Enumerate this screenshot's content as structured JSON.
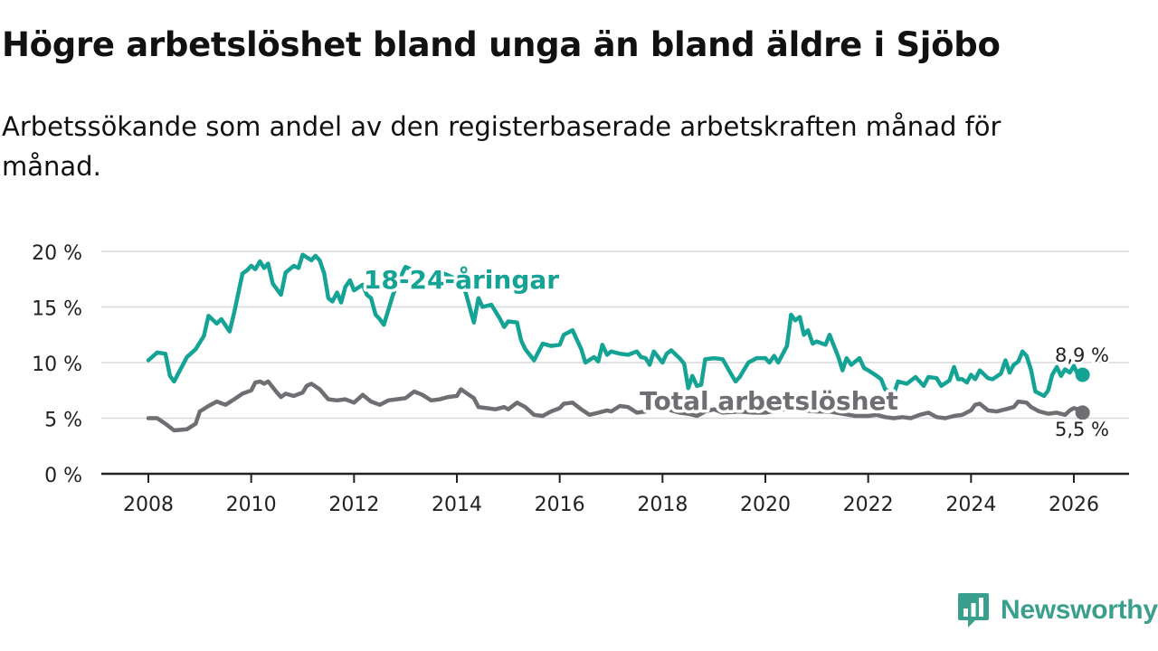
{
  "header": {
    "title": "Högre arbetslöshet bland unga än bland äldre i Sjöbo",
    "subtitle": "Arbetssökande som andel av den registerbaserade arbetskraften månad för månad."
  },
  "brand": {
    "name": "Newsworthy",
    "color": "#3aa08d"
  },
  "chart_data": {
    "type": "line",
    "title": "Högre arbetslöshet bland unga än bland äldre i Sjöbo",
    "xlabel": "",
    "ylabel": "",
    "xlim": [
      2007.5,
      2027.0
    ],
    "ylim": [
      0,
      20
    ],
    "yticks": [
      0,
      5,
      10,
      15,
      20
    ],
    "ytick_labels": [
      "0 %",
      "5 %",
      "10 %",
      "15 %",
      "20 %"
    ],
    "xticks": [
      2008,
      2010,
      2012,
      2014,
      2016,
      2018,
      2020,
      2022,
      2024,
      2026
    ],
    "xtick_labels": [
      "2008",
      "2010",
      "2012",
      "2014",
      "2016",
      "2018",
      "2020",
      "2022",
      "2024",
      "2026"
    ],
    "grid": true,
    "series": [
      {
        "name": "18-24-åringar",
        "color": "#14a394",
        "end_label": "8,9 %",
        "points": [
          [
            2008.0,
            10.2
          ],
          [
            2008.17,
            10.9
          ],
          [
            2008.33,
            10.8
          ],
          [
            2008.42,
            8.8
          ],
          [
            2008.5,
            8.3
          ],
          [
            2008.75,
            10.5
          ],
          [
            2008.92,
            11.2
          ],
          [
            2009.08,
            12.4
          ],
          [
            2009.17,
            14.2
          ],
          [
            2009.33,
            13.5
          ],
          [
            2009.42,
            13.9
          ],
          [
            2009.58,
            12.8
          ],
          [
            2009.67,
            14.5
          ],
          [
            2009.83,
            18.0
          ],
          [
            2009.92,
            18.3
          ],
          [
            2010.0,
            18.7
          ],
          [
            2010.08,
            18.4
          ],
          [
            2010.17,
            19.1
          ],
          [
            2010.25,
            18.5
          ],
          [
            2010.33,
            18.9
          ],
          [
            2010.42,
            17.1
          ],
          [
            2010.58,
            16.1
          ],
          [
            2010.67,
            18.1
          ],
          [
            2010.83,
            18.7
          ],
          [
            2010.92,
            18.5
          ],
          [
            2011.0,
            19.7
          ],
          [
            2011.17,
            19.2
          ],
          [
            2011.25,
            19.6
          ],
          [
            2011.33,
            19.2
          ],
          [
            2011.42,
            18.0
          ],
          [
            2011.5,
            15.8
          ],
          [
            2011.58,
            15.5
          ],
          [
            2011.67,
            16.3
          ],
          [
            2011.75,
            15.4
          ],
          [
            2011.83,
            16.8
          ],
          [
            2011.92,
            17.4
          ],
          [
            2012.0,
            16.5
          ],
          [
            2012.17,
            17.0
          ],
          [
            2012.25,
            16.1
          ],
          [
            2012.33,
            15.8
          ],
          [
            2012.42,
            14.3
          ],
          [
            2012.5,
            13.9
          ],
          [
            2012.58,
            13.4
          ],
          [
            2012.75,
            16.0
          ],
          [
            2012.83,
            17.0
          ],
          [
            2013.0,
            18.6
          ],
          [
            2013.25,
            18.1
          ],
          [
            2013.5,
            17.2
          ],
          [
            2013.75,
            18.0
          ],
          [
            2014.0,
            17.5
          ],
          [
            2014.17,
            16.3
          ],
          [
            2014.33,
            13.6
          ],
          [
            2014.42,
            15.8
          ],
          [
            2014.5,
            15.0
          ],
          [
            2014.67,
            15.2
          ],
          [
            2014.83,
            14.0
          ],
          [
            2014.92,
            13.2
          ],
          [
            2015.0,
            13.7
          ],
          [
            2015.17,
            13.6
          ],
          [
            2015.25,
            12.0
          ],
          [
            2015.33,
            11.2
          ],
          [
            2015.5,
            10.2
          ],
          [
            2015.67,
            11.7
          ],
          [
            2015.83,
            11.5
          ],
          [
            2016.0,
            11.6
          ],
          [
            2016.08,
            12.5
          ],
          [
            2016.25,
            12.9
          ],
          [
            2016.42,
            11.2
          ],
          [
            2016.5,
            10.0
          ],
          [
            2016.67,
            10.5
          ],
          [
            2016.75,
            10.1
          ],
          [
            2016.83,
            11.6
          ],
          [
            2016.92,
            10.7
          ],
          [
            2017.0,
            11.0
          ],
          [
            2017.17,
            10.8
          ],
          [
            2017.33,
            10.7
          ],
          [
            2017.5,
            11.0
          ],
          [
            2017.58,
            10.5
          ],
          [
            2017.67,
            10.4
          ],
          [
            2017.75,
            9.8
          ],
          [
            2017.83,
            11.0
          ],
          [
            2018.0,
            10.0
          ],
          [
            2018.08,
            10.8
          ],
          [
            2018.17,
            11.1
          ],
          [
            2018.33,
            10.4
          ],
          [
            2018.42,
            9.9
          ],
          [
            2018.5,
            7.7
          ],
          [
            2018.58,
            8.8
          ],
          [
            2018.67,
            7.9
          ],
          [
            2018.75,
            8.0
          ],
          [
            2018.83,
            10.3
          ],
          [
            2019.0,
            10.4
          ],
          [
            2019.17,
            10.3
          ],
          [
            2019.33,
            9.0
          ],
          [
            2019.42,
            8.3
          ],
          [
            2019.5,
            8.7
          ],
          [
            2019.67,
            10.0
          ],
          [
            2019.83,
            10.4
          ],
          [
            2020.0,
            10.4
          ],
          [
            2020.08,
            10.0
          ],
          [
            2020.17,
            10.6
          ],
          [
            2020.25,
            10.0
          ],
          [
            2020.42,
            11.5
          ],
          [
            2020.5,
            14.3
          ],
          [
            2020.58,
            13.8
          ],
          [
            2020.67,
            14.1
          ],
          [
            2020.75,
            12.5
          ],
          [
            2020.83,
            12.9
          ],
          [
            2020.92,
            11.7
          ],
          [
            2021.0,
            11.9
          ],
          [
            2021.17,
            11.6
          ],
          [
            2021.25,
            12.5
          ],
          [
            2021.42,
            10.5
          ],
          [
            2021.5,
            9.3
          ],
          [
            2021.58,
            10.4
          ],
          [
            2021.67,
            9.8
          ],
          [
            2021.83,
            10.4
          ],
          [
            2021.92,
            9.5
          ],
          [
            2022.0,
            9.3
          ],
          [
            2022.17,
            8.8
          ],
          [
            2022.25,
            8.5
          ],
          [
            2022.33,
            7.6
          ],
          [
            2022.5,
            7.2
          ],
          [
            2022.58,
            8.3
          ],
          [
            2022.75,
            8.1
          ],
          [
            2022.92,
            8.7
          ],
          [
            2023.08,
            7.9
          ],
          [
            2023.17,
            8.7
          ],
          [
            2023.33,
            8.6
          ],
          [
            2023.42,
            7.9
          ],
          [
            2023.58,
            8.4
          ],
          [
            2023.67,
            9.6
          ],
          [
            2023.75,
            8.5
          ],
          [
            2023.83,
            8.5
          ],
          [
            2023.92,
            8.2
          ],
          [
            2024.0,
            8.9
          ],
          [
            2024.08,
            8.5
          ],
          [
            2024.17,
            9.3
          ],
          [
            2024.33,
            8.6
          ],
          [
            2024.42,
            8.5
          ],
          [
            2024.58,
            9.0
          ],
          [
            2024.67,
            10.2
          ],
          [
            2024.75,
            9.1
          ],
          [
            2024.83,
            9.8
          ],
          [
            2024.92,
            10.1
          ],
          [
            2025.0,
            11.0
          ],
          [
            2025.08,
            10.6
          ],
          [
            2025.17,
            9.3
          ],
          [
            2025.25,
            7.4
          ],
          [
            2025.42,
            7.0
          ],
          [
            2025.5,
            7.5
          ],
          [
            2025.58,
            8.9
          ],
          [
            2025.67,
            9.6
          ],
          [
            2025.75,
            8.8
          ],
          [
            2025.83,
            9.4
          ],
          [
            2025.92,
            9.1
          ],
          [
            2026.0,
            9.7
          ],
          [
            2026.08,
            8.9
          ],
          [
            2026.17,
            8.9
          ]
        ]
      },
      {
        "name": "Total arbetslöshet",
        "color": "#6e6e73",
        "end_label": "5,5 %",
        "points": [
          [
            2008.0,
            5.0
          ],
          [
            2008.17,
            5.0
          ],
          [
            2008.33,
            4.5
          ],
          [
            2008.5,
            3.9
          ],
          [
            2008.75,
            4.0
          ],
          [
            2008.92,
            4.5
          ],
          [
            2009.0,
            5.6
          ],
          [
            2009.17,
            6.1
          ],
          [
            2009.33,
            6.5
          ],
          [
            2009.5,
            6.2
          ],
          [
            2009.67,
            6.7
          ],
          [
            2009.83,
            7.2
          ],
          [
            2010.0,
            7.5
          ],
          [
            2010.08,
            8.2
          ],
          [
            2010.17,
            8.3
          ],
          [
            2010.25,
            8.1
          ],
          [
            2010.33,
            8.3
          ],
          [
            2010.5,
            7.3
          ],
          [
            2010.58,
            6.9
          ],
          [
            2010.67,
            7.2
          ],
          [
            2010.83,
            7.0
          ],
          [
            2011.0,
            7.3
          ],
          [
            2011.08,
            7.9
          ],
          [
            2011.17,
            8.1
          ],
          [
            2011.33,
            7.6
          ],
          [
            2011.5,
            6.7
          ],
          [
            2011.67,
            6.6
          ],
          [
            2011.83,
            6.7
          ],
          [
            2012.0,
            6.4
          ],
          [
            2012.17,
            7.1
          ],
          [
            2012.33,
            6.5
          ],
          [
            2012.5,
            6.2
          ],
          [
            2012.67,
            6.6
          ],
          [
            2012.83,
            6.7
          ],
          [
            2013.0,
            6.8
          ],
          [
            2013.17,
            7.4
          ],
          [
            2013.33,
            7.1
          ],
          [
            2013.5,
            6.6
          ],
          [
            2013.67,
            6.7
          ],
          [
            2013.83,
            6.9
          ],
          [
            2014.0,
            7.0
          ],
          [
            2014.08,
            7.6
          ],
          [
            2014.17,
            7.3
          ],
          [
            2014.33,
            6.8
          ],
          [
            2014.42,
            6.0
          ],
          [
            2014.58,
            5.9
          ],
          [
            2014.75,
            5.8
          ],
          [
            2014.92,
            6.0
          ],
          [
            2015.0,
            5.8
          ],
          [
            2015.17,
            6.4
          ],
          [
            2015.33,
            6.0
          ],
          [
            2015.5,
            5.3
          ],
          [
            2015.67,
            5.2
          ],
          [
            2015.83,
            5.6
          ],
          [
            2016.0,
            5.9
          ],
          [
            2016.08,
            6.3
          ],
          [
            2016.25,
            6.4
          ],
          [
            2016.42,
            5.8
          ],
          [
            2016.58,
            5.3
          ],
          [
            2016.75,
            5.5
          ],
          [
            2016.92,
            5.7
          ],
          [
            2017.0,
            5.6
          ],
          [
            2017.17,
            6.1
          ],
          [
            2017.33,
            6.0
          ],
          [
            2017.5,
            5.5
          ],
          [
            2017.67,
            5.6
          ],
          [
            2017.83,
            6.0
          ],
          [
            2018.0,
            6.0
          ],
          [
            2018.17,
            5.7
          ],
          [
            2018.33,
            5.5
          ],
          [
            2018.5,
            5.4
          ],
          [
            2018.67,
            5.2
          ],
          [
            2018.83,
            5.6
          ],
          [
            2019.0,
            5.8
          ],
          [
            2019.17,
            5.5
          ],
          [
            2019.5,
            5.6
          ],
          [
            2019.75,
            5.5
          ],
          [
            2020.0,
            5.5
          ],
          [
            2020.25,
            5.7
          ],
          [
            2020.5,
            5.9
          ],
          [
            2020.75,
            5.7
          ],
          [
            2021.0,
            5.6
          ],
          [
            2021.25,
            5.6
          ],
          [
            2021.5,
            5.4
          ],
          [
            2021.75,
            5.2
          ],
          [
            2022.0,
            5.2
          ],
          [
            2022.17,
            5.3
          ],
          [
            2022.33,
            5.1
          ],
          [
            2022.5,
            5.0
          ],
          [
            2022.67,
            5.1
          ],
          [
            2022.83,
            5.0
          ],
          [
            2023.0,
            5.3
          ],
          [
            2023.17,
            5.5
          ],
          [
            2023.33,
            5.1
          ],
          [
            2023.5,
            5.0
          ],
          [
            2023.67,
            5.2
          ],
          [
            2023.83,
            5.3
          ],
          [
            2024.0,
            5.7
          ],
          [
            2024.08,
            6.2
          ],
          [
            2024.17,
            6.3
          ],
          [
            2024.33,
            5.7
          ],
          [
            2024.5,
            5.6
          ],
          [
            2024.67,
            5.8
          ],
          [
            2024.83,
            6.0
          ],
          [
            2024.92,
            6.5
          ],
          [
            2025.08,
            6.4
          ],
          [
            2025.17,
            6.0
          ],
          [
            2025.33,
            5.6
          ],
          [
            2025.5,
            5.4
          ],
          [
            2025.67,
            5.5
          ],
          [
            2025.83,
            5.3
          ],
          [
            2025.92,
            5.7
          ],
          [
            2026.0,
            5.9
          ],
          [
            2026.08,
            5.8
          ],
          [
            2026.17,
            5.5
          ]
        ]
      }
    ]
  }
}
